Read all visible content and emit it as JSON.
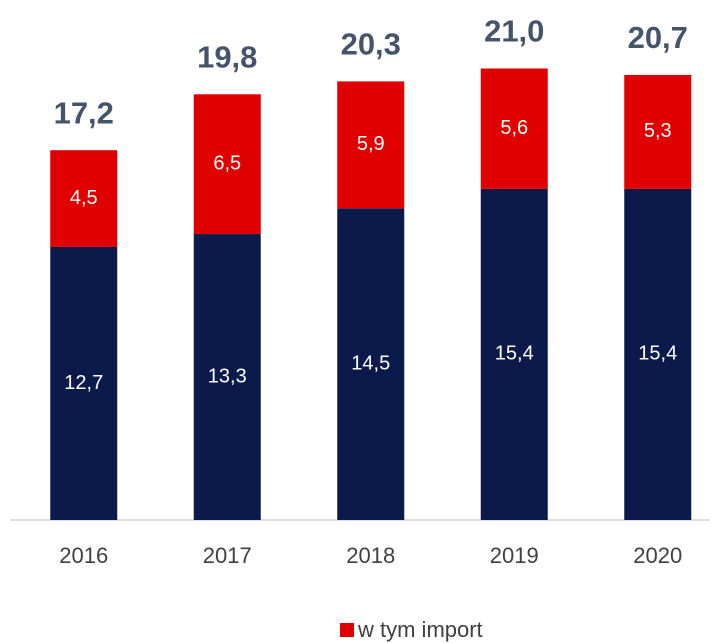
{
  "chart_data": {
    "type": "bar",
    "stacked": true,
    "categories": [
      "2016",
      "2017",
      "2018",
      "2019",
      "2020"
    ],
    "series": [
      {
        "color": "#0b1a4b",
        "values": [
          12.7,
          13.3,
          14.5,
          15.4,
          15.4
        ],
        "value_labels": [
          "12,7",
          "13,3",
          "14,5",
          "15,4",
          "15,4"
        ]
      },
      {
        "name": "w tym import",
        "color": "#e00000",
        "values": [
          4.5,
          6.5,
          5.9,
          5.6,
          5.3
        ],
        "value_labels": [
          "4,5",
          "6,5",
          "5,9",
          "5,6",
          "5,3"
        ]
      }
    ],
    "total_labels": [
      "17,2",
      "19,8",
      "20,3",
      "21,0",
      "20,7"
    ]
  }
}
